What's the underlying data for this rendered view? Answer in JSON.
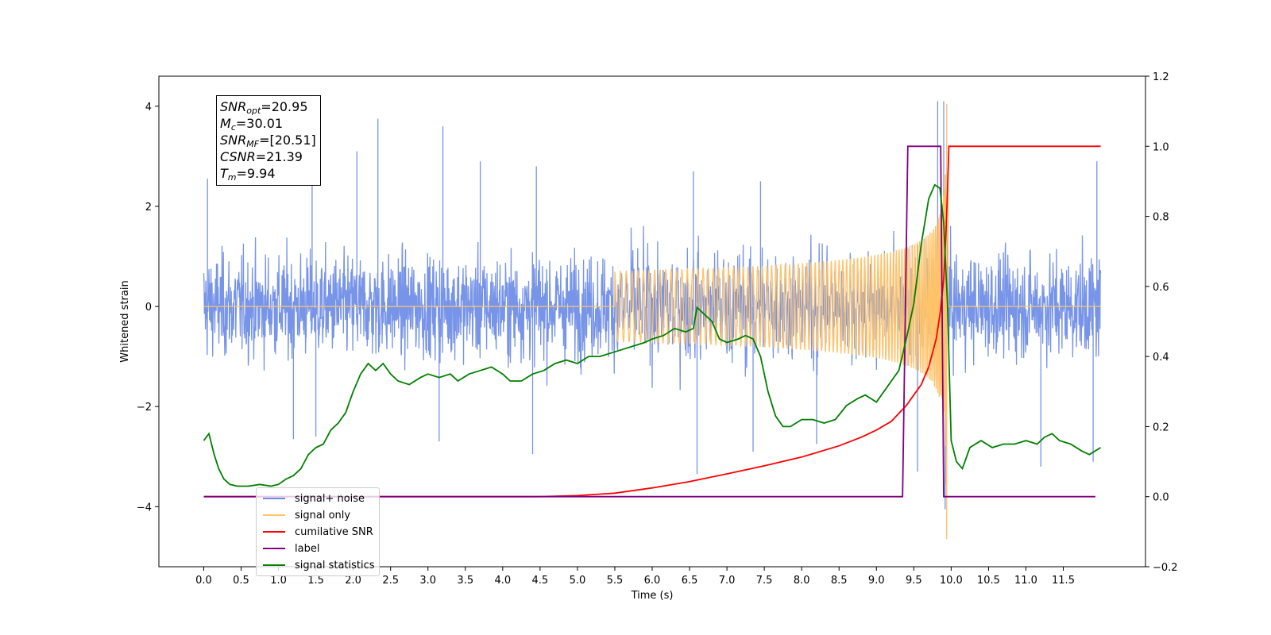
{
  "chart_data": {
    "type": "line",
    "xlabel": "Time (s)",
    "ylabel": "Whitened strain",
    "xlim": [
      -0.6,
      12.6
    ],
    "ylim": [
      -5.2,
      4.6
    ],
    "ylim_right": [
      -0.2,
      1.2
    ],
    "x_ticks": [
      "0.0",
      "0.5",
      "1.0",
      "1.5",
      "2.0",
      "2.5",
      "3.0",
      "3.5",
      "4.0",
      "4.5",
      "5.0",
      "5.5",
      "6.0",
      "6.5",
      "7.0",
      "7.5",
      "8.0",
      "8.5",
      "9.0",
      "9.5",
      "10.0",
      "10.5",
      "11.0",
      "11.5"
    ],
    "y_ticks": [
      "4",
      "2",
      "0",
      "−2",
      "−4"
    ],
    "y_ticks_right": [
      "1.2",
      "1.0",
      "0.8",
      "0.6",
      "0.4",
      "0.2",
      "0.0",
      "−0.2"
    ],
    "grid": false,
    "legend_position": "lower-left",
    "colors": {
      "signal_noise": "#6b8be6",
      "signal_only": "#ffc36a",
      "cumulative_snr": "#ff0000",
      "label": "#800080",
      "signal_statistics": "#008000"
    },
    "annotation": {
      "snr_opt": "=20.95",
      "mc": "=30.01",
      "snr_mf": "=[20.51]",
      "csnr": "=21.39",
      "tm": "=9.94"
    },
    "series": [
      {
        "name": "signal+ noise",
        "axis": "left",
        "x_range": [
          0.0,
          12.0
        ],
        "amplitude_typical": 1.2,
        "peak_values": [
          {
            "x": 0.05,
            "y": 2.55
          },
          {
            "x": 1.45,
            "y": 2.5
          },
          {
            "x": 2.05,
            "y": 3.1
          },
          {
            "x": 2.33,
            "y": 3.75
          },
          {
            "x": 3.2,
            "y": 3.6
          },
          {
            "x": 3.7,
            "y": 2.9
          },
          {
            "x": 4.45,
            "y": 2.8
          },
          {
            "x": 6.55,
            "y": 2.7
          },
          {
            "x": 7.45,
            "y": 2.5
          },
          {
            "x": 9.82,
            "y": 4.1
          },
          {
            "x": 9.9,
            "y": 4.1
          },
          {
            "x": 11.95,
            "y": 2.9
          }
        ],
        "trough_values": [
          {
            "x": 1.2,
            "y": -2.65
          },
          {
            "x": 1.5,
            "y": -2.6
          },
          {
            "x": 3.15,
            "y": -2.7
          },
          {
            "x": 4.4,
            "y": -2.95
          },
          {
            "x": 6.6,
            "y": -3.35
          },
          {
            "x": 7.35,
            "y": -2.9
          },
          {
            "x": 8.2,
            "y": -2.75
          },
          {
            "x": 9.55,
            "y": -3.3
          },
          {
            "x": 9.92,
            "y": -4.05
          },
          {
            "x": 11.2,
            "y": -3.2
          },
          {
            "x": 11.9,
            "y": -3.1
          }
        ]
      },
      {
        "name": "signal only",
        "axis": "left",
        "chirp_start": 5.5,
        "merger_time": 9.94,
        "peak_amplitude": 4.05,
        "min_value": -4.65
      },
      {
        "name": "cumilative SNR",
        "axis": "right",
        "points": [
          [
            0.0,
            0.0
          ],
          [
            3.0,
            0.0
          ],
          [
            4.5,
            0.0
          ],
          [
            5.0,
            0.003
          ],
          [
            5.5,
            0.01
          ],
          [
            6.0,
            0.025
          ],
          [
            6.5,
            0.043
          ],
          [
            7.0,
            0.065
          ],
          [
            7.5,
            0.088
          ],
          [
            8.0,
            0.113
          ],
          [
            8.5,
            0.145
          ],
          [
            8.8,
            0.17
          ],
          [
            9.0,
            0.19
          ],
          [
            9.2,
            0.215
          ],
          [
            9.4,
            0.26
          ],
          [
            9.6,
            0.32
          ],
          [
            9.7,
            0.37
          ],
          [
            9.8,
            0.45
          ],
          [
            9.85,
            0.52
          ],
          [
            9.9,
            0.62
          ],
          [
            9.93,
            0.75
          ],
          [
            9.95,
            0.87
          ],
          [
            9.97,
            1.0
          ],
          [
            10.0,
            1.0
          ],
          [
            11.5,
            1.0
          ],
          [
            12.0,
            1.0
          ]
        ]
      },
      {
        "name": "label",
        "axis": "right",
        "points": [
          [
            0.0,
            0.0
          ],
          [
            9.35,
            0.0
          ],
          [
            9.42,
            1.0
          ],
          [
            9.86,
            1.0
          ],
          [
            9.9,
            0.0
          ],
          [
            11.93,
            0.0
          ]
        ]
      },
      {
        "name": "signal statistics",
        "axis": "right",
        "points": [
          [
            0.0,
            0.16
          ],
          [
            0.07,
            0.18
          ],
          [
            0.14,
            0.12
          ],
          [
            0.2,
            0.08
          ],
          [
            0.27,
            0.05
          ],
          [
            0.35,
            0.035
          ],
          [
            0.45,
            0.03
          ],
          [
            0.6,
            0.03
          ],
          [
            0.75,
            0.035
          ],
          [
            0.9,
            0.03
          ],
          [
            1.0,
            0.035
          ],
          [
            1.1,
            0.05
          ],
          [
            1.2,
            0.06
          ],
          [
            1.3,
            0.08
          ],
          [
            1.4,
            0.12
          ],
          [
            1.5,
            0.14
          ],
          [
            1.6,
            0.15
          ],
          [
            1.7,
            0.19
          ],
          [
            1.8,
            0.21
          ],
          [
            1.9,
            0.24
          ],
          [
            2.0,
            0.3
          ],
          [
            2.1,
            0.35
          ],
          [
            2.2,
            0.38
          ],
          [
            2.3,
            0.36
          ],
          [
            2.4,
            0.38
          ],
          [
            2.5,
            0.35
          ],
          [
            2.6,
            0.33
          ],
          [
            2.75,
            0.32
          ],
          [
            2.9,
            0.34
          ],
          [
            3.0,
            0.35
          ],
          [
            3.15,
            0.34
          ],
          [
            3.3,
            0.35
          ],
          [
            3.4,
            0.33
          ],
          [
            3.55,
            0.35
          ],
          [
            3.7,
            0.36
          ],
          [
            3.85,
            0.37
          ],
          [
            4.0,
            0.35
          ],
          [
            4.1,
            0.33
          ],
          [
            4.25,
            0.33
          ],
          [
            4.4,
            0.35
          ],
          [
            4.55,
            0.36
          ],
          [
            4.7,
            0.38
          ],
          [
            4.85,
            0.39
          ],
          [
            5.0,
            0.38
          ],
          [
            5.15,
            0.4
          ],
          [
            5.3,
            0.4
          ],
          [
            5.45,
            0.41
          ],
          [
            5.6,
            0.42
          ],
          [
            5.75,
            0.43
          ],
          [
            5.9,
            0.44
          ],
          [
            6.0,
            0.45
          ],
          [
            6.15,
            0.46
          ],
          [
            6.3,
            0.48
          ],
          [
            6.45,
            0.47
          ],
          [
            6.55,
            0.48
          ],
          [
            6.6,
            0.54
          ],
          [
            6.7,
            0.52
          ],
          [
            6.8,
            0.5
          ],
          [
            6.9,
            0.45
          ],
          [
            7.0,
            0.44
          ],
          [
            7.15,
            0.45
          ],
          [
            7.25,
            0.46
          ],
          [
            7.35,
            0.45
          ],
          [
            7.45,
            0.4
          ],
          [
            7.55,
            0.3
          ],
          [
            7.65,
            0.23
          ],
          [
            7.75,
            0.2
          ],
          [
            7.85,
            0.2
          ],
          [
            8.0,
            0.22
          ],
          [
            8.15,
            0.22
          ],
          [
            8.3,
            0.21
          ],
          [
            8.45,
            0.22
          ],
          [
            8.6,
            0.26
          ],
          [
            8.75,
            0.28
          ],
          [
            8.85,
            0.29
          ],
          [
            9.0,
            0.27
          ],
          [
            9.1,
            0.3
          ],
          [
            9.2,
            0.33
          ],
          [
            9.3,
            0.36
          ],
          [
            9.4,
            0.45
          ],
          [
            9.5,
            0.55
          ],
          [
            9.6,
            0.72
          ],
          [
            9.7,
            0.85
          ],
          [
            9.78,
            0.89
          ],
          [
            9.85,
            0.88
          ],
          [
            9.9,
            0.78
          ],
          [
            9.95,
            0.55
          ],
          [
            10.0,
            0.16
          ],
          [
            10.07,
            0.1
          ],
          [
            10.15,
            0.08
          ],
          [
            10.25,
            0.14
          ],
          [
            10.4,
            0.16
          ],
          [
            10.55,
            0.14
          ],
          [
            10.7,
            0.15
          ],
          [
            10.85,
            0.15
          ],
          [
            11.0,
            0.16
          ],
          [
            11.15,
            0.15
          ],
          [
            11.25,
            0.17
          ],
          [
            11.35,
            0.18
          ],
          [
            11.45,
            0.16
          ],
          [
            11.6,
            0.15
          ],
          [
            11.75,
            0.13
          ],
          [
            11.85,
            0.12
          ],
          [
            12.0,
            0.14
          ]
        ]
      }
    ]
  },
  "legend": {
    "items": [
      {
        "label": "signal+ noise",
        "color": "#6b8be6"
      },
      {
        "label": "signal only",
        "color": "#ffc36a"
      },
      {
        "label": "cumilative SNR",
        "color": "#ff0000"
      },
      {
        "label": "label",
        "color": "#800080"
      },
      {
        "label": "signal statistics",
        "color": "#008000"
      }
    ]
  }
}
